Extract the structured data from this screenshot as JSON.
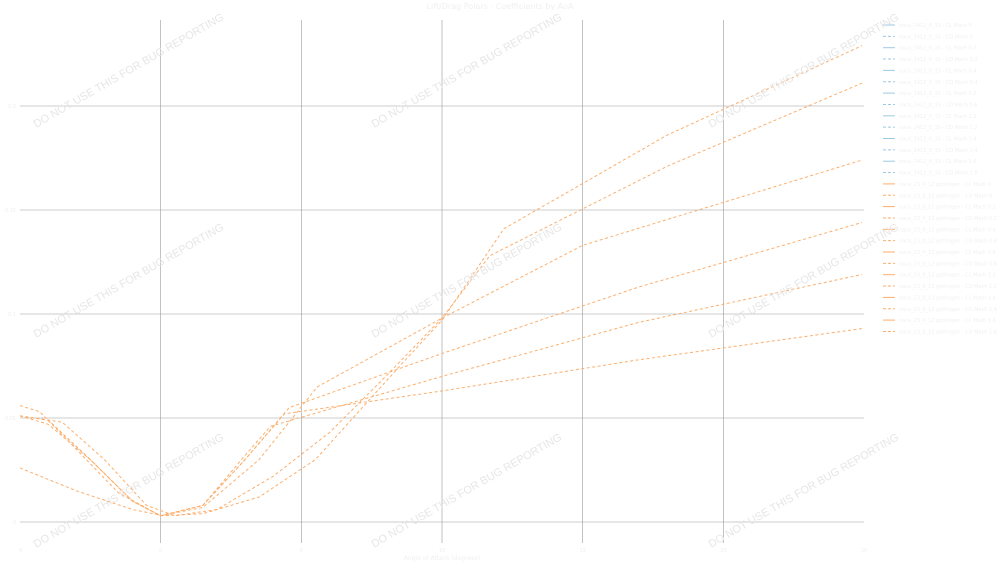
{
  "chart_data": {
    "type": "line",
    "title": "Lift/Drag Polars - Coefficients by AoA",
    "xlabel": "Angle of Attack (degrees)",
    "ylabel": "",
    "xlim": [
      -5,
      25
    ],
    "ylim": [
      -0.004,
      0.245
    ],
    "xticks": [
      "-5",
      "0",
      "5",
      "10",
      "15",
      "20",
      "25"
    ],
    "yticks": [
      "0",
      "0.05",
      "0.1",
      "0.15",
      "0.2"
    ],
    "grid": true,
    "legend_placement": "right",
    "colors": {
      "blue": "#9ecae1",
      "orange": "#fdae6b",
      "grid": "#999999"
    },
    "series": [
      {
        "color": "orange",
        "dash": true,
        "x": [
          -5,
          -3,
          -1,
          0.1,
          1.5,
          3.5,
          5.5,
          7.1,
          8.5,
          10,
          12.2,
          18,
          24.93
        ],
        "y": [
          0.026,
          0.015,
          0.006,
          0.003,
          0.004,
          0.012,
          0.03,
          0.054,
          0.075,
          0.097,
          0.141,
          0.186,
          0.229
        ]
      },
      {
        "color": "orange",
        "dash": true,
        "x": [
          -5,
          -3.5,
          -2,
          -0.5,
          0.5,
          2,
          4,
          6,
          8,
          10,
          11.7,
          18,
          24.93
        ],
        "y": [
          0.051,
          0.048,
          0.03,
          0.008,
          0.003,
          0.006,
          0.022,
          0.043,
          0.07,
          0.098,
          0.128,
          0.171,
          0.211
        ]
      },
      {
        "color": "orange",
        "dash": true,
        "x": [
          -5,
          -4,
          -2.5,
          -1,
          0,
          1.5,
          3.5,
          5.57,
          10,
          15,
          24.93
        ],
        "y": [
          0.051,
          0.047,
          0.03,
          0.01,
          0.003,
          0.007,
          0.03,
          0.065,
          0.098,
          0.133,
          0.174
        ]
      },
      {
        "color": "orange",
        "dash": true,
        "x": [
          -5,
          -4.3,
          -3,
          -1.5,
          0,
          1.5,
          3,
          4.57,
          10,
          17,
          24.93
        ],
        "y": [
          0.056,
          0.053,
          0.035,
          0.014,
          0.003,
          0.008,
          0.03,
          0.055,
          0.081,
          0.113,
          0.144
        ]
      },
      {
        "color": "orange",
        "dash": true,
        "x": [
          -5,
          -4,
          -2.5,
          -1,
          0,
          1.5,
          3,
          3.9,
          10,
          17,
          24.93
        ],
        "y": [
          0.051,
          0.049,
          0.03,
          0.01,
          0.003,
          0.008,
          0.032,
          0.046,
          0.07,
          0.096,
          0.119
        ]
      },
      {
        "color": "orange",
        "dash": true,
        "x": [
          -5,
          -4,
          -2.5,
          -1,
          0,
          1.5,
          3,
          4.4,
          10,
          17,
          24.93
        ],
        "y": [
          0.051,
          0.049,
          0.03,
          0.01,
          0.003,
          0.008,
          0.03,
          0.052,
          0.063,
          0.078,
          0.093
        ]
      }
    ],
    "legend": [
      {
        "label": "naca_2412_0_15 - CL Mach 0",
        "color": "blue",
        "dash": false
      },
      {
        "label": "naca_2412_0_15 - CD Mach 0",
        "color": "blue",
        "dash": true
      },
      {
        "label": "naca_2412_0_15 - CL Mach 0.2",
        "color": "blue",
        "dash": false
      },
      {
        "label": "naca_2412_0_15 - CD Mach 0.2",
        "color": "blue",
        "dash": true
      },
      {
        "label": "naca_2412_0_15 - CL Mach 0.4",
        "color": "blue",
        "dash": false
      },
      {
        "label": "naca_2412_0_15 - CD Mach 0.4",
        "color": "blue",
        "dash": true
      },
      {
        "label": "naca_2412_0_15 - CL Mach 0.6",
        "color": "blue",
        "dash": false
      },
      {
        "label": "naca_2412_0_15 - CD Mach 0.6",
        "color": "blue",
        "dash": true
      },
      {
        "label": "naca_2412_0_15 - CL Mach 1.2",
        "color": "blue",
        "dash": false
      },
      {
        "label": "naca_2412_0_15 - CD Mach 1.2",
        "color": "blue",
        "dash": true
      },
      {
        "label": "naca_2412_0_15 - CL Mach 1.4",
        "color": "blue",
        "dash": false
      },
      {
        "label": "naca_2412_0_15 - CD Mach 1.4",
        "color": "blue",
        "dash": true
      },
      {
        "label": "naca_2412_0_15 - CL Mach 1.6",
        "color": "blue",
        "dash": false
      },
      {
        "label": "naca_2412_0_15 - CD Mach 1.6",
        "color": "blue",
        "dash": true
      },
      {
        "label": "naca_23_0_12 gottingen - CL Mach 0",
        "color": "orange",
        "dash": false
      },
      {
        "label": "naca_23_0_12 gottingen - CD Mach 0",
        "color": "orange",
        "dash": true
      },
      {
        "label": "naca_23_0_12 gottingen - CL Mach 0.2",
        "color": "orange",
        "dash": false
      },
      {
        "label": "naca_23_0_12 gottingen - CD Mach 0.2",
        "color": "orange",
        "dash": true
      },
      {
        "label": "naca_23_0_12 gottingen - CL Mach 0.4",
        "color": "orange",
        "dash": false
      },
      {
        "label": "naca_23_0_12 gottingen - CD Mach 0.4",
        "color": "orange",
        "dash": true
      },
      {
        "label": "naca_23_0_12 gottingen - CL Mach 0.6",
        "color": "orange",
        "dash": false
      },
      {
        "label": "naca_23_0_12 gottingen - CD Mach 0.6",
        "color": "orange",
        "dash": true
      },
      {
        "label": "naca_23_0_12 gottingen - CL Mach 1.2",
        "color": "orange",
        "dash": false
      },
      {
        "label": "naca_23_0_12 gottingen - CD Mach 1.2",
        "color": "orange",
        "dash": true
      },
      {
        "label": "naca_23_0_12 gottingen - CL Mach 1.4",
        "color": "orange",
        "dash": false
      },
      {
        "label": "naca_23_0_12 gottingen - CD Mach 1.4",
        "color": "orange",
        "dash": true
      },
      {
        "label": "naca_23_0_12 gottingen - CL Mach 1.6",
        "color": "orange",
        "dash": false
      },
      {
        "label": "naca_23_0_12 gottingen - CD Mach 1.6",
        "color": "orange",
        "dash": true
      }
    ]
  },
  "watermark": "DO NOT USE THIS FOR BUG REPORTING"
}
